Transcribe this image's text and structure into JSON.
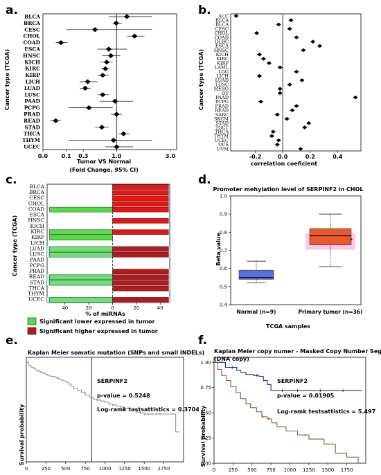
{
  "panel_labels": [
    "a.",
    "b.",
    "c.",
    "d.",
    "e.",
    "f."
  ],
  "colors": {
    "marker": "#000000",
    "bar_up": "#ee1111",
    "bar_down": "#55dd44",
    "hl_cyan": "#b4f0f6",
    "hl_pink": "#f7c9ec",
    "box_normal": "#5a6ee0",
    "box_tumor": "#e85a2c",
    "km_mutation": "#888888",
    "km_line": "#3a3a8c",
    "km_brown": "#8a5a44",
    "km_blue": "#1c2a8c"
  },
  "chart_data": [
    {
      "panel": "a.",
      "type": "scatter",
      "chart_subtype": "forest",
      "categories": [
        "BLCA",
        "BRCA",
        "CESC",
        "CHOL",
        "COAD",
        "ESCA",
        "HNSC",
        "KICH",
        "KIRC",
        "KIRP",
        "LICH",
        "LUAD",
        "LUSC",
        "PAAD",
        "PCPG",
        "PRAD",
        "READ",
        "STAD",
        "THCA",
        "THYM",
        "UCEC"
      ],
      "x_scale": "sqrt",
      "xticks": [
        "0.0",
        "0.1",
        "0.3",
        "1.0",
        "3.0"
      ],
      "xtick_values": [
        0,
        0.1,
        0.3,
        1,
        3
      ],
      "xlim": [
        0,
        3.3
      ],
      "reference_line": 1.0,
      "estimates": [
        1.3,
        0.99,
        0.5,
        1.55,
        0.06,
        0.8,
        0.85,
        0.75,
        0.72,
        0.66,
        0.37,
        0.33,
        0.66,
        0.96,
        0.39,
        1.0,
        0.03,
        0.64,
        1.2,
        0.92,
        1.0
      ],
      "ci_low": [
        0.8,
        0.9,
        0.1,
        1.3,
        0.03,
        0.55,
        0.65,
        0.6,
        0.62,
        0.55,
        0.25,
        0.25,
        0.55,
        0.6,
        0.12,
        0.85,
        0.01,
        0.5,
        1.05,
        0.12,
        0.72
      ],
      "ci_high": [
        2.2,
        1.15,
        2.2,
        1.9,
        0.11,
        1.3,
        1.1,
        0.9,
        0.83,
        0.8,
        0.55,
        0.42,
        0.8,
        1.5,
        0.9,
        1.15,
        0.06,
        0.8,
        1.4,
        2.2,
        1.5
      ],
      "xlabel": "Tumor VS Normal",
      "xlabel2": "(Fold Change, 95% CI)",
      "ylabel": "Cancer type (TCGA)"
    },
    {
      "panel": "b.",
      "type": "scatter",
      "categories": [
        "ACC",
        "BLCA",
        "BLCA",
        "CESC",
        "CHOL",
        "COAD",
        "DLBC",
        "ESCA",
        "HNSC",
        "KICH",
        "KIRC",
        "KIRP",
        "LAML",
        "LGG",
        "LICH",
        "LUAD",
        "LUSC",
        "MESO",
        "OV",
        "PAAD",
        "PCPG",
        "PRAD",
        "READ",
        "SARC",
        "SKCM",
        "STAD",
        "TGCT",
        "THCA",
        "THYM",
        "UCEC",
        "UCS",
        "UVM"
      ],
      "values": [
        -0.34,
        0.06,
        -0.03,
        0.05,
        -0.19,
        0.1,
        0.22,
        0.27,
        0.15,
        -0.17,
        -0.14,
        -0.1,
        -0.02,
        0.1,
        -0.17,
        0.14,
        0.05,
        -0.02,
        -0.02,
        0.53,
        -0.16,
        0.1,
        0.07,
        -0.04,
        0.03,
        0.19,
        0.16,
        -0.07,
        -0.08,
        -0.03,
        -0.04,
        0.13
      ],
      "xticks": [
        "-0.2",
        "0.0",
        "0.2",
        "0.4"
      ],
      "xtick_values": [
        -0.2,
        0,
        0.2,
        0.4
      ],
      "xlim": [
        -0.38,
        0.57
      ],
      "reference_line": 0,
      "xlabel": "correlation coeficient",
      "ylabel": "Cancer type (TCGA)"
    },
    {
      "panel": "c.",
      "type": "bar",
      "orientation": "horizontal",
      "categories": [
        "BLCA",
        "BRCA",
        "CESC",
        "CHOL",
        "COAD",
        "ESCA",
        "HNSC",
        "KICH",
        "KIRC",
        "KIRP",
        "LICH",
        "LUAD",
        "LUSC",
        "PAAD",
        "PCPG",
        "PRAD",
        "READ",
        "STAD",
        "THCA",
        "THYM",
        "UCEC"
      ],
      "series": [
        {
          "name": "Significant lower expressed in tumor",
          "values": [
            0,
            0,
            0,
            0,
            53,
            0,
            0,
            0,
            53,
            53,
            0,
            53,
            53,
            0,
            0,
            0,
            53,
            53,
            0,
            0,
            53
          ]
        },
        {
          "name": "Significant higher expressed in tumor",
          "values": [
            47,
            47,
            47,
            47,
            47,
            0,
            47,
            0,
            47,
            0,
            0,
            47,
            47,
            0,
            0,
            47,
            47,
            47,
            47,
            0,
            47
          ]
        }
      ],
      "highlight_cyan": [
        "LUAD",
        "LUSC",
        "READ",
        "STAD",
        "UCEC"
      ],
      "highlight_pink": [
        "LUAD",
        "LUSC",
        "PRAD",
        "READ",
        "STAD",
        "THCA",
        "UCEC"
      ],
      "xticks": [
        "40",
        "20",
        "0",
        "20",
        "40"
      ],
      "xtick_values": [
        -40,
        -20,
        0,
        20,
        40
      ],
      "xlim": [
        -55,
        48
      ],
      "xlabel": "% of miRNAs",
      "ylabel": "Cancer type (TCGA)"
    },
    {
      "panel": "d.",
      "type": "box",
      "title": "Promoter mehylation level of SERPINF2 in CHOL",
      "categories": [
        "Normal (n=9)",
        "Primary tumor (n=36)"
      ],
      "series": [
        {
          "name": "Normal (n=9)",
          "whisker_low": 0.52,
          "q1": 0.54,
          "median": 0.55,
          "q3": 0.59,
          "whisker_high": 0.64
        },
        {
          "name": "Primary tumor (n=36)",
          "whisker_low": 0.61,
          "q1": 0.73,
          "median": 0.78,
          "q3": 0.82,
          "whisker_high": 0.9
        }
      ],
      "yticks": [
        "0.4",
        "0.5",
        "0.6",
        "0.7",
        "0.8",
        "0.9",
        "1.0"
      ],
      "ylim": [
        0.4,
        1.0
      ],
      "ylabel": "Beta value",
      "xlabel": "TCGA samples"
    },
    {
      "panel": "e.",
      "type": "line",
      "chart_subtype": "kaplan-meier",
      "title": "Kaplan Meier somatic mutation (SNPs and small INDELs)",
      "series": [
        {
          "name": "SERPINF2",
          "x": [
            0,
            30,
            60,
            90,
            120,
            150,
            180,
            210,
            240,
            270,
            300,
            330,
            360,
            390,
            420,
            450,
            480,
            510,
            540,
            570,
            600,
            650,
            700,
            750,
            800,
            850,
            900,
            950,
            1000,
            1050,
            1100,
            1150,
            1200,
            1250,
            1300,
            1350,
            1400,
            1450,
            1500,
            1550,
            1600,
            1650,
            1700,
            1750,
            1800,
            1850,
            1900,
            1950
          ],
          "y": [
            1.0,
            0.97,
            0.95,
            0.94,
            0.92,
            0.91,
            0.9,
            0.89,
            0.88,
            0.87,
            0.86,
            0.86,
            0.85,
            0.84,
            0.83,
            0.82,
            0.81,
            0.8,
            0.78,
            0.76,
            0.74,
            0.72,
            0.7,
            0.67,
            0.65,
            0.63,
            0.62,
            0.61,
            0.6,
            0.58,
            0.57,
            0.56,
            0.55,
            0.54,
            0.53,
            0.52,
            0.5,
            0.49,
            0.48,
            0.48,
            0.48,
            0.48,
            0.48,
            0.48,
            0.48,
            0.48,
            0.3,
            0.3
          ]
        }
      ],
      "xticks": [
        "0",
        "250",
        "500",
        "750",
        "1000",
        "1250",
        "1500",
        "1750"
      ],
      "xtick_values": [
        0,
        250,
        500,
        750,
        1000,
        1250,
        1500,
        1750
      ],
      "xlim": [
        0,
        2000
      ],
      "ylim": [
        0,
        1.05
      ],
      "ylabel": "Survival probability",
      "vertical_line": 830,
      "label": "SERPINF2",
      "pvalue": "p-value = 0.5248",
      "logrank": "Log-ramk testsattistics = 0.3704"
    },
    {
      "panel": "f.",
      "type": "line",
      "chart_subtype": "kaplan-meier",
      "title": "Kaplan Meier copy numer - Masked Copy Number Segment",
      "subtitle": "(DNA copy)",
      "series": [
        {
          "name": "blue",
          "x": [
            0,
            60,
            150,
            260,
            300,
            350,
            420,
            520,
            590,
            650,
            700,
            750,
            800,
            900,
            1000,
            1200,
            1400,
            1600,
            1800,
            1950
          ],
          "y": [
            1.0,
            1.0,
            0.95,
            0.95,
            0.92,
            0.9,
            0.88,
            0.87,
            0.86,
            0.82,
            0.78,
            0.72,
            0.72,
            0.72,
            0.72,
            0.72,
            0.72,
            0.72,
            0.72,
            0.72
          ]
        },
        {
          "name": "brown",
          "x": [
            0,
            50,
            100,
            160,
            220,
            290,
            350,
            420,
            480,
            560,
            630,
            700,
            760,
            830,
            950,
            1100,
            1250,
            1450,
            1600,
            1750,
            1900
          ],
          "y": [
            1.0,
            0.93,
            0.87,
            0.82,
            0.76,
            0.7,
            0.64,
            0.59,
            0.55,
            0.51,
            0.46,
            0.44,
            0.4,
            0.36,
            0.32,
            0.28,
            0.24,
            0.19,
            0.1,
            0.06,
            0.0
          ]
        }
      ],
      "xticks": [
        "0",
        "250",
        "500",
        "750",
        "1000",
        "1250",
        "1500",
        "1750"
      ],
      "xtick_values": [
        0,
        250,
        500,
        750,
        1000,
        1250,
        1500,
        1750
      ],
      "xlim": [
        0,
        2000
      ],
      "yticks": [
        "0.00",
        "0.25",
        "0.50",
        "0.75",
        "1.00"
      ],
      "ylim": [
        0,
        1.05
      ],
      "ylabel": "Survival probability",
      "label": "SERPINF2",
      "pvalue": "p-value = 0.01905",
      "logrank": "Log-ramk testsattistics = 5.497"
    }
  ]
}
